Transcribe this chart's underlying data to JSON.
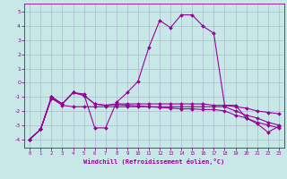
{
  "xlabel": "Windchill (Refroidissement éolien,°C)",
  "background_color": "#c8e8e8",
  "grid_color": "#aabbcc",
  "line_color": "#990099",
  "x_ticks": [
    0,
    1,
    2,
    3,
    4,
    5,
    6,
    7,
    8,
    9,
    10,
    11,
    12,
    13,
    14,
    15,
    16,
    17,
    18,
    19,
    20,
    21,
    22,
    23
  ],
  "y_ticks": [
    -4,
    -3,
    -2,
    -1,
    0,
    1,
    2,
    3,
    4,
    5
  ],
  "xlim": [
    -0.5,
    23.5
  ],
  "ylim": [
    -4.6,
    5.6
  ],
  "curve1_x": [
    0,
    1,
    2,
    3,
    4,
    5,
    6,
    7,
    8,
    9,
    10,
    11,
    12,
    13,
    14,
    15,
    16,
    17,
    18,
    19,
    20,
    21,
    22,
    23
  ],
  "curve1_y": [
    -4.0,
    -3.3,
    -1.0,
    -1.5,
    -0.7,
    -0.8,
    -3.2,
    -3.2,
    -1.4,
    -0.7,
    0.1,
    2.5,
    4.4,
    3.9,
    4.8,
    4.8,
    4.0,
    3.5,
    -1.6,
    -1.6,
    -2.5,
    -2.9,
    -3.5,
    -3.1
  ],
  "curve2_x": [
    0,
    1,
    2,
    3,
    4,
    5,
    6,
    7,
    8,
    9,
    10,
    11,
    12,
    13,
    14,
    15,
    16,
    17,
    18,
    19,
    20,
    21,
    22,
    23
  ],
  "curve2_y": [
    -4.0,
    -3.3,
    -1.0,
    -1.5,
    -0.7,
    -0.9,
    -1.5,
    -1.6,
    -1.5,
    -1.5,
    -1.5,
    -1.5,
    -1.5,
    -1.5,
    -1.5,
    -1.5,
    -1.5,
    -1.6,
    -1.6,
    -1.7,
    -1.8,
    -2.0,
    -2.1,
    -2.2
  ],
  "curve3_x": [
    0,
    1,
    2,
    3,
    4,
    5,
    6,
    7,
    8,
    9,
    10,
    11,
    12,
    13,
    14,
    15,
    16,
    17,
    18,
    19,
    20,
    21,
    22,
    23
  ],
  "curve3_y": [
    -4.0,
    -3.3,
    -1.1,
    -1.6,
    -1.7,
    -1.7,
    -1.7,
    -1.7,
    -1.7,
    -1.7,
    -1.7,
    -1.7,
    -1.7,
    -1.7,
    -1.7,
    -1.7,
    -1.7,
    -1.7,
    -1.7,
    -2.0,
    -2.3,
    -2.5,
    -2.8,
    -3.0
  ],
  "curve4_x": [
    0,
    1,
    2,
    3,
    4,
    5,
    6,
    7,
    8,
    9,
    10,
    11,
    12,
    13,
    14,
    15,
    16,
    17,
    18,
    19,
    20,
    21,
    22,
    23
  ],
  "curve4_y": [
    -4.0,
    -3.3,
    -1.1,
    -1.5,
    -0.7,
    -0.9,
    -1.5,
    -1.6,
    -1.55,
    -1.6,
    -1.65,
    -1.7,
    -1.75,
    -1.8,
    -1.85,
    -1.85,
    -1.9,
    -1.9,
    -2.0,
    -2.3,
    -2.5,
    -2.8,
    -3.0,
    -3.2
  ]
}
